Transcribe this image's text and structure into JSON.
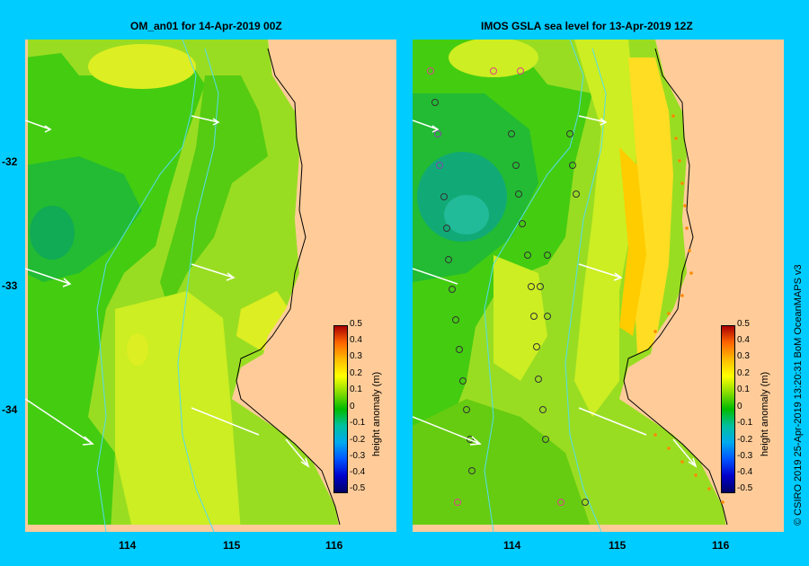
{
  "panels": {
    "left": {
      "title": "OM_an01  for 14-Apr-2019 00Z"
    },
    "right": {
      "title": "IMOS GSLA sea level  for 13-Apr-2019 12Z"
    }
  },
  "axes": {
    "lon_ticks": [
      "114",
      "115",
      "116"
    ],
    "lat_ticks": [
      "-32",
      "-33",
      "-34"
    ]
  },
  "colorbar": {
    "title": "height anomaly (m)",
    "ticks": [
      "0.5",
      "0.4",
      "0.3",
      "0.2",
      "0.1",
      "0",
      "-0.1",
      "-0.2",
      "-0.3",
      "-0.4",
      "-0.5"
    ],
    "range": [
      -0.5,
      0.5
    ]
  },
  "credit": "© CSIRO 2019   25-Apr-2019 13:20:31 BoM OceanMAPS v3",
  "colors": {
    "background": "#00ccff",
    "land": "#ffcc99",
    "anomaly_zero": "#33cc00",
    "anomaly_low": "#00bb66",
    "anomaly_high": "#ffff33"
  }
}
